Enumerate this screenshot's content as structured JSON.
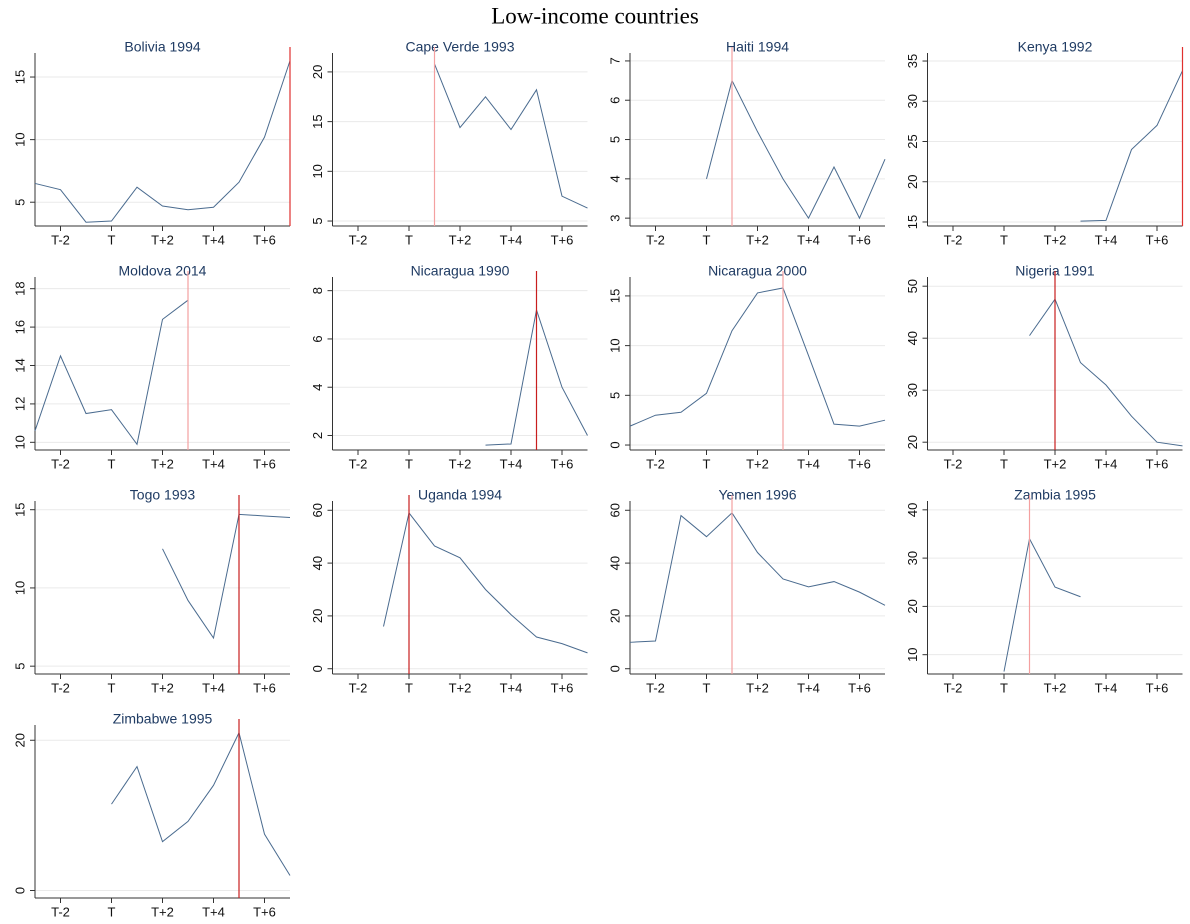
{
  "title": "Low-income countries",
  "chart_data": [
    {
      "type": "line",
      "title": "Bolivia 1994",
      "x": [
        -3,
        -2,
        -1,
        0,
        1,
        2,
        3,
        4,
        5,
        6,
        7
      ],
      "xlim": [
        -3,
        7
      ],
      "xticks": [
        {
          "value": -2,
          "label": "T-2"
        },
        {
          "value": 0,
          "label": "T"
        },
        {
          "value": 2,
          "label": "T+2"
        },
        {
          "value": 4,
          "label": "T+4"
        },
        {
          "value": 6,
          "label": "T+6"
        }
      ],
      "ylim": [
        3.1,
        16.6
      ],
      "yticks": [
        5,
        10,
        15
      ],
      "grid": true,
      "color": "#4a6b8f",
      "values": [
        6.5,
        6.0,
        3.4,
        3.5,
        6.2,
        4.7,
        4.4,
        4.6,
        6.6,
        10.2,
        16.3
      ],
      "event_x": 7,
      "event_color": "#e0302e"
    },
    {
      "type": "line",
      "title": "Cape Verde 1993",
      "x": [
        -3,
        -2,
        -1,
        0,
        1,
        2,
        3,
        4,
        5,
        6,
        7
      ],
      "xlim": [
        -3,
        7
      ],
      "xticks": [
        {
          "value": -2,
          "label": "T-2"
        },
        {
          "value": 0,
          "label": "T"
        },
        {
          "value": 2,
          "label": "T+2"
        },
        {
          "value": 4,
          "label": "T+4"
        },
        {
          "value": 6,
          "label": "T+6"
        }
      ],
      "ylim": [
        4.5,
        21.5
      ],
      "yticks": [
        5,
        10,
        15,
        20
      ],
      "grid": true,
      "color": "#4a6b8f",
      "values": [
        null,
        null,
        null,
        null,
        20.8,
        14.4,
        17.5,
        14.2,
        18.2,
        7.5,
        6.3
      ],
      "event_x": 1,
      "event_color": "#f4a0a0"
    },
    {
      "type": "line",
      "title": "Haiti 1994",
      "x": [
        -3,
        -2,
        -1,
        0,
        1,
        2,
        3,
        4,
        5,
        6,
        7
      ],
      "xlim": [
        -3,
        7
      ],
      "xticks": [
        {
          "value": -2,
          "label": "T-2"
        },
        {
          "value": 0,
          "label": "T"
        },
        {
          "value": 2,
          "label": "T+2"
        },
        {
          "value": 4,
          "label": "T+4"
        },
        {
          "value": 6,
          "label": "T+6"
        }
      ],
      "ylim": [
        2.8,
        7.1
      ],
      "yticks": [
        3,
        4,
        5,
        6,
        7
      ],
      "grid": true,
      "color": "#4a6b8f",
      "values": [
        null,
        null,
        null,
        4.0,
        6.5,
        5.2,
        4.0,
        3.0,
        4.3,
        3.0,
        4.5
      ],
      "event_x": 1,
      "event_color": "#f4a0a0"
    },
    {
      "type": "line",
      "title": "Kenya 1992",
      "x": [
        -3,
        -2,
        -1,
        0,
        1,
        2,
        3,
        4,
        5,
        6,
        7
      ],
      "xlim": [
        -3,
        7
      ],
      "xticks": [
        {
          "value": -2,
          "label": "T-2"
        },
        {
          "value": 0,
          "label": "T"
        },
        {
          "value": 2,
          "label": "T+2"
        },
        {
          "value": 4,
          "label": "T+4"
        },
        {
          "value": 6,
          "label": "T+6"
        }
      ],
      "ylim": [
        14.5,
        35.5
      ],
      "yticks": [
        15,
        20,
        25,
        30,
        35
      ],
      "grid": true,
      "color": "#4a6b8f",
      "values": [
        null,
        null,
        null,
        null,
        null,
        null,
        15.1,
        15.2,
        24,
        27,
        33.8
      ],
      "event_x": 7,
      "event_color": "#e0302e"
    },
    {
      "type": "line",
      "title": "Moldova 2014",
      "x": [
        -3,
        -2,
        -1,
        0,
        1,
        2,
        3,
        4,
        5,
        6,
        7
      ],
      "xlim": [
        -3,
        7
      ],
      "xticks": [
        {
          "value": -2,
          "label": "T-2"
        },
        {
          "value": 0,
          "label": "T"
        },
        {
          "value": 2,
          "label": "T+2"
        },
        {
          "value": 4,
          "label": "T+4"
        },
        {
          "value": 6,
          "label": "T+6"
        }
      ],
      "ylim": [
        9.6,
        18.4
      ],
      "yticks": [
        10,
        12,
        14,
        16,
        18
      ],
      "grid": true,
      "color": "#4a6b8f",
      "values": [
        10.6,
        14.5,
        11.5,
        11.7,
        9.9,
        16.4,
        17.4,
        null,
        null,
        null,
        null
      ],
      "event_x": 3,
      "event_color": "#f4a0a0"
    },
    {
      "type": "line",
      "title": "Nicaragua 1990",
      "x": [
        -3,
        -2,
        -1,
        0,
        1,
        2,
        3,
        4,
        5,
        6,
        7
      ],
      "xlim": [
        -3,
        7
      ],
      "xticks": [
        {
          "value": -2,
          "label": "T-2"
        },
        {
          "value": 0,
          "label": "T"
        },
        {
          "value": 2,
          "label": "T+2"
        },
        {
          "value": 4,
          "label": "T+4"
        },
        {
          "value": 6,
          "label": "T+6"
        }
      ],
      "ylim": [
        1.4,
        8.4
      ],
      "yticks": [
        2,
        4,
        6,
        8
      ],
      "grid": true,
      "color": "#4a6b8f",
      "values": [
        null,
        null,
        null,
        null,
        null,
        null,
        1.6,
        1.65,
        7.2,
        4.0,
        2.0
      ],
      "event_x": 5,
      "event_color": "#c81e1e"
    },
    {
      "type": "line",
      "title": "Nicaragua 2000",
      "x": [
        -3,
        -2,
        -1,
        0,
        1,
        2,
        3,
        4,
        5,
        6,
        7
      ],
      "xlim": [
        -3,
        7
      ],
      "xticks": [
        {
          "value": -2,
          "label": "T-2"
        },
        {
          "value": 0,
          "label": "T"
        },
        {
          "value": 2,
          "label": "T+2"
        },
        {
          "value": 4,
          "label": "T+4"
        },
        {
          "value": 6,
          "label": "T+6"
        }
      ],
      "ylim": [
        -0.5,
        16.5
      ],
      "yticks": [
        0,
        5,
        10,
        15
      ],
      "grid": true,
      "color": "#4a6b8f",
      "values": [
        1.9,
        3.0,
        3.3,
        5.2,
        11.5,
        15.3,
        15.8,
        9.0,
        2.1,
        1.9,
        2.5
      ],
      "event_x": 3,
      "event_color": "#f4a0a0"
    },
    {
      "type": "line",
      "title": "Nigeria 1991",
      "x": [
        -3,
        -2,
        -1,
        0,
        1,
        2,
        3,
        4,
        5,
        6,
        7
      ],
      "xlim": [
        -3,
        7
      ],
      "xticks": [
        {
          "value": -2,
          "label": "T-2"
        },
        {
          "value": 0,
          "label": "T"
        },
        {
          "value": 2,
          "label": "T+2"
        },
        {
          "value": 4,
          "label": "T+4"
        },
        {
          "value": 6,
          "label": "T+6"
        }
      ],
      "ylim": [
        18.5,
        51
      ],
      "yticks": [
        20,
        30,
        40,
        50
      ],
      "grid": true,
      "color": "#4a6b8f",
      "values": [
        null,
        null,
        null,
        null,
        40.5,
        47.5,
        35.3,
        31,
        25,
        20,
        19.3
      ],
      "event_x": 2,
      "event_color": "#c81e1e"
    },
    {
      "type": "line",
      "title": "Togo 1993",
      "x": [
        -3,
        -2,
        -1,
        0,
        1,
        2,
        3,
        4,
        5,
        6,
        7
      ],
      "xlim": [
        -3,
        7
      ],
      "xticks": [
        {
          "value": -2,
          "label": "T-2"
        },
        {
          "value": 0,
          "label": "T"
        },
        {
          "value": 2,
          "label": "T+2"
        },
        {
          "value": 4,
          "label": "T+4"
        },
        {
          "value": 6,
          "label": "T+6"
        }
      ],
      "ylim": [
        4.5,
        15.3
      ],
      "yticks": [
        5,
        10,
        15
      ],
      "grid": true,
      "color": "#4a6b8f",
      "values": [
        null,
        null,
        null,
        null,
        null,
        12.5,
        9.2,
        6.8,
        14.7,
        14.6,
        14.5
      ],
      "event_x": 5,
      "event_color": "#c81e1e"
    },
    {
      "type": "line",
      "title": "Uganda 1994",
      "x": [
        -3,
        -2,
        -1,
        0,
        1,
        2,
        3,
        4,
        5,
        6,
        7
      ],
      "xlim": [
        -3,
        7
      ],
      "xticks": [
        {
          "value": -2,
          "label": "T-2"
        },
        {
          "value": 0,
          "label": "T"
        },
        {
          "value": 2,
          "label": "T+2"
        },
        {
          "value": 4,
          "label": "T+4"
        },
        {
          "value": 6,
          "label": "T+6"
        }
      ],
      "ylim": [
        -2,
        62
      ],
      "yticks": [
        0,
        20,
        40,
        60
      ],
      "grid": true,
      "color": "#4a6b8f",
      "values": [
        null,
        null,
        16,
        59,
        46.5,
        42,
        30,
        20.5,
        12,
        9.5,
        6
      ],
      "event_x": 0,
      "event_color": "#c81e1e"
    },
    {
      "type": "line",
      "title": "Yemen 1996",
      "x": [
        -3,
        -2,
        -1,
        0,
        1,
        2,
        3,
        4,
        5,
        6,
        7
      ],
      "xlim": [
        -3,
        7
      ],
      "xticks": [
        {
          "value": -2,
          "label": "T-2"
        },
        {
          "value": 0,
          "label": "T"
        },
        {
          "value": 2,
          "label": "T+2"
        },
        {
          "value": 4,
          "label": "T+4"
        },
        {
          "value": 6,
          "label": "T+6"
        }
      ],
      "ylim": [
        -2,
        62
      ],
      "yticks": [
        0,
        20,
        40,
        60
      ],
      "grid": true,
      "color": "#4a6b8f",
      "values": [
        10,
        10.5,
        58,
        50,
        59,
        44,
        34,
        31,
        33,
        29,
        24
      ],
      "event_x": 1,
      "event_color": "#f4a0a0"
    },
    {
      "type": "line",
      "title": "Zambia 1995",
      "x": [
        -3,
        -2,
        -1,
        0,
        1,
        2,
        3,
        4,
        5,
        6,
        7
      ],
      "xlim": [
        -3,
        7
      ],
      "xticks": [
        {
          "value": -2,
          "label": "T-2"
        },
        {
          "value": 0,
          "label": "T"
        },
        {
          "value": 2,
          "label": "T+2"
        },
        {
          "value": 4,
          "label": "T+4"
        },
        {
          "value": 6,
          "label": "T+6"
        }
      ],
      "ylim": [
        6,
        41
      ],
      "yticks": [
        10,
        20,
        30,
        40
      ],
      "grid": true,
      "color": "#4a6b8f",
      "values": [
        null,
        null,
        null,
        6.5,
        34,
        24,
        22,
        null,
        null,
        null,
        null
      ],
      "event_x": 1,
      "event_color": "#f4a0a0"
    },
    {
      "type": "line",
      "title": "Zimbabwe 1995",
      "x": [
        -3,
        -2,
        -1,
        0,
        1,
        2,
        3,
        4,
        5,
        6,
        7
      ],
      "xlim": [
        -3,
        7
      ],
      "xticks": [
        {
          "value": -2,
          "label": "T-2"
        },
        {
          "value": 0,
          "label": "T"
        },
        {
          "value": 2,
          "label": "T+2"
        },
        {
          "value": 4,
          "label": "T+4"
        },
        {
          "value": 6,
          "label": "T+6"
        }
      ],
      "ylim": [
        -1,
        21.5
      ],
      "yticks": [
        0,
        20
      ],
      "grid": true,
      "color": "#4a6b8f",
      "values": [
        null,
        null,
        null,
        11.5,
        16.5,
        6.5,
        9.2,
        14,
        21,
        7.5,
        2.0
      ],
      "event_x": 5,
      "event_color": "#c81e1e"
    }
  ]
}
